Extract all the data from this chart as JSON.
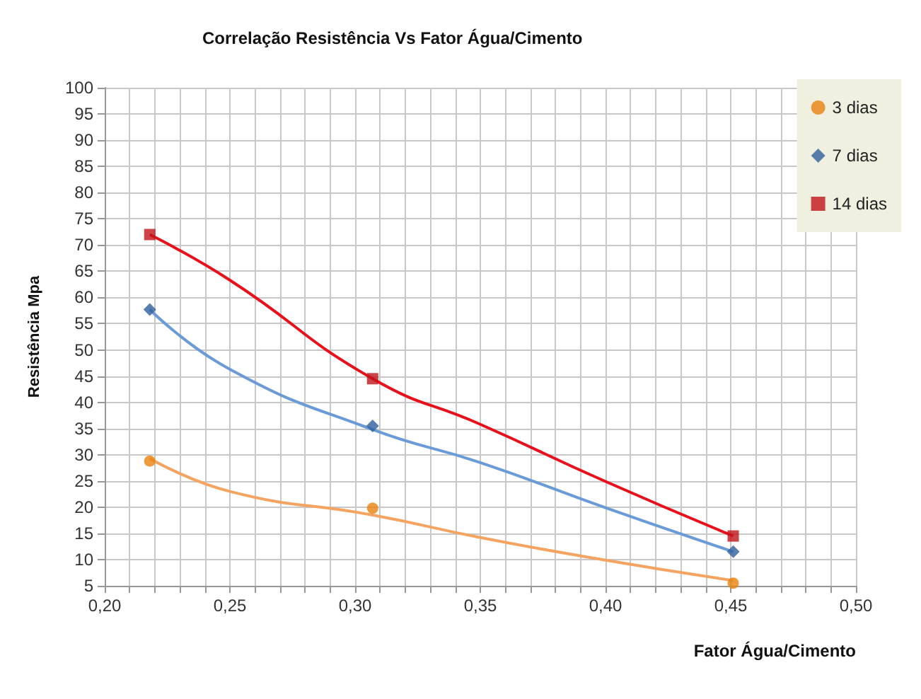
{
  "chart_data": {
    "type": "scatter",
    "title": "Correlação Resistência Vs Fator Água/Cimento",
    "xlabel": "Fator Água/Cimento",
    "ylabel": "Resistência Mpa",
    "x": [
      0.218,
      0.307,
      0.451
    ],
    "series": [
      {
        "name": "3 dias",
        "color": "#e8820c",
        "marker": "circle",
        "values": [
          28.8,
          19.8,
          5.5
        ]
      },
      {
        "name": "7 dias",
        "color": "#2f5f9e",
        "marker": "diamond",
        "values": [
          57.7,
          35.5,
          11.5
        ]
      },
      {
        "name": "14 dias",
        "color": "#c0141c",
        "marker": "square",
        "values": [
          72,
          44.5,
          14.5
        ]
      },
      {
        "type": "line",
        "color": "#f4a460",
        "marker": "none",
        "x": [
          0.218,
          0.25,
          0.307,
          0.35,
          0.4,
          0.451
        ],
        "values": [
          29.3,
          23,
          18.5,
          14.2,
          9.9,
          6
        ]
      },
      {
        "type": "line",
        "color": "#6a9bd8",
        "marker": "none",
        "x": [
          0.218,
          0.25,
          0.307,
          0.35,
          0.4,
          0.451
        ],
        "values": [
          57.7,
          46.3,
          34.8,
          28.5,
          19.9,
          11.5
        ]
      },
      {
        "type": "line",
        "color": "#e8101a",
        "marker": "none",
        "x": [
          0.218,
          0.25,
          0.307,
          0.35,
          0.4,
          0.451
        ],
        "values": [
          72,
          63.3,
          44.5,
          35.8,
          24.9,
          14.5
        ]
      }
    ],
    "xlim": [
      0.2,
      0.5
    ],
    "xticks": [
      {
        "value": 0.2,
        "label": "0,20"
      },
      {
        "value": 0.21,
        "label": null
      },
      {
        "value": 0.22,
        "label": null
      },
      {
        "value": 0.23,
        "label": null
      },
      {
        "value": 0.24,
        "label": null
      },
      {
        "value": 0.25,
        "label": "0,25"
      },
      {
        "value": 0.26,
        "label": null
      },
      {
        "value": 0.27,
        "label": null
      },
      {
        "value": 0.28,
        "label": null
      },
      {
        "value": 0.29,
        "label": null
      },
      {
        "value": 0.3,
        "label": "0,30"
      },
      {
        "value": 0.31,
        "label": null
      },
      {
        "value": 0.32,
        "label": null
      },
      {
        "value": 0.33,
        "label": null
      },
      {
        "value": 0.34,
        "label": null
      },
      {
        "value": 0.35,
        "label": "0,35"
      },
      {
        "value": 0.36,
        "label": null
      },
      {
        "value": 0.37,
        "label": null
      },
      {
        "value": 0.38,
        "label": null
      },
      {
        "value": 0.39,
        "label": null
      },
      {
        "value": 0.4,
        "label": "0,40"
      },
      {
        "value": 0.41,
        "label": null
      },
      {
        "value": 0.42,
        "label": null
      },
      {
        "value": 0.43,
        "label": null
      },
      {
        "value": 0.44,
        "label": null
      },
      {
        "value": 0.45,
        "label": "0,45"
      },
      {
        "value": 0.46,
        "label": null
      },
      {
        "value": 0.47,
        "label": null
      },
      {
        "value": 0.48,
        "label": null
      },
      {
        "value": 0.49,
        "label": null
      },
      {
        "value": 0.5,
        "label": "0,50"
      }
    ],
    "ylim": [
      5,
      100
    ],
    "yticks": [
      5,
      10,
      15,
      20,
      25,
      30,
      35,
      40,
      45,
      50,
      55,
      60,
      65,
      70,
      75,
      80,
      85,
      90,
      95,
      100
    ],
    "grid": true,
    "legend": "top right"
  }
}
